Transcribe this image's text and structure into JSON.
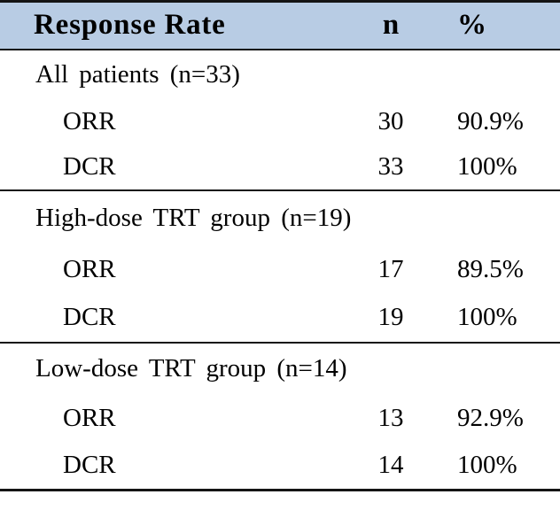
{
  "table": {
    "header": {
      "col1": "Response Rate",
      "col2": "n",
      "col3": "%"
    },
    "sections": [
      {
        "group": "All patients (n=33)",
        "rows": [
          {
            "label": "ORR",
            "n": "30",
            "pct": "90.9%"
          },
          {
            "label": "DCR",
            "n": "33",
            "pct": "100%"
          }
        ]
      },
      {
        "group": "High-dose TRT group (n=19)",
        "rows": [
          {
            "label": "ORR",
            "n": "17",
            "pct": "89.5%"
          },
          {
            "label": "DCR",
            "n": "19",
            "pct": "100%"
          }
        ]
      },
      {
        "group": "Low-dose TRT group (n=14)",
        "rows": [
          {
            "label": "ORR",
            "n": "13",
            "pct": "92.9%"
          },
          {
            "label": "DCR",
            "n": "14",
            "pct": "100%"
          }
        ]
      }
    ],
    "colors": {
      "header_bg": "#b8cce4",
      "border": "#141414",
      "text": "#000000"
    }
  },
  "chart_data": {
    "type": "table",
    "title": "Response Rate",
    "columns": [
      "Response Rate",
      "n",
      "%"
    ],
    "rows": [
      [
        "All patients (n=33)",
        "",
        ""
      ],
      [
        "ORR",
        "30",
        "90.9%"
      ],
      [
        "DCR",
        "33",
        "100%"
      ],
      [
        "High-dose TRT group (n=19)",
        "",
        ""
      ],
      [
        "ORR",
        "17",
        "89.5%"
      ],
      [
        "DCR",
        "19",
        "100%"
      ],
      [
        "Low-dose TRT group (n=14)",
        "",
        ""
      ],
      [
        "ORR",
        "13",
        "92.9%"
      ],
      [
        "DCR",
        "14",
        "100%"
      ]
    ]
  }
}
